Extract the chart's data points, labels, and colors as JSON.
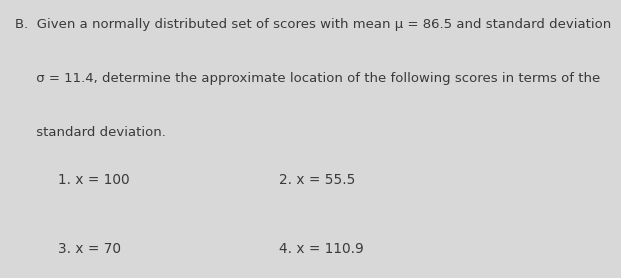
{
  "background_color": "#d8d8d8",
  "line1": "B.  Given a normally distributed set of scores with mean μ = 86.5 and standard deviation",
  "line2": "     σ = 11.4, determine the approximate location of the following scores in terms of the",
  "line3": "     standard deviation.",
  "item1": "1. x = 100",
  "item2": "2. x = 55.5",
  "item3": "3. x = 70",
  "item4": "4. x = 110.9",
  "text_color": "#3a3a3a",
  "font_size_header": 9.5,
  "font_size_items": 9.8,
  "font_family": "DejaVu Sans"
}
